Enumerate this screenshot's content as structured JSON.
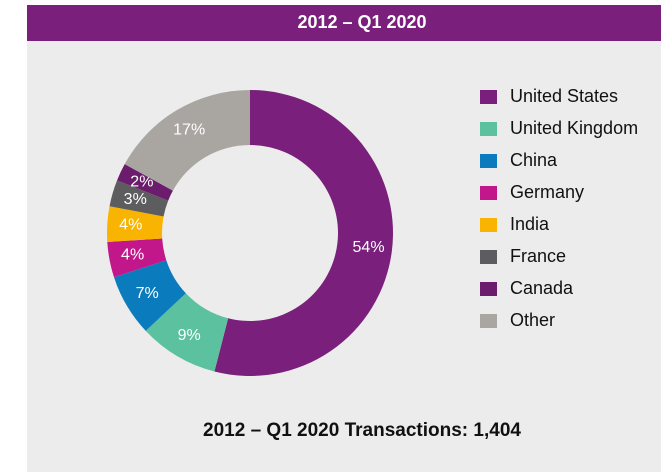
{
  "chart_data": {
    "type": "pie",
    "title": "2012 – Q1 2020",
    "categories": [
      "United States",
      "United Kingdom",
      "China",
      "Germany",
      "India",
      "France",
      "Canada",
      "Other"
    ],
    "values": [
      54,
      9,
      7,
      4,
      4,
      3,
      2,
      17
    ],
    "value_labels": [
      "54%",
      "9%",
      "7%",
      "4%",
      "4%",
      "3%",
      "2%",
      "17%"
    ],
    "colors": [
      "#7a1f7b",
      "#5cc19f",
      "#0a7cbd",
      "#c2178b",
      "#f8b400",
      "#5d5d5f",
      "#6b1c6c",
      "#a9a6a1"
    ],
    "donut": true,
    "footer": "2012 – Q1 2020 Transactions: 1,404"
  }
}
